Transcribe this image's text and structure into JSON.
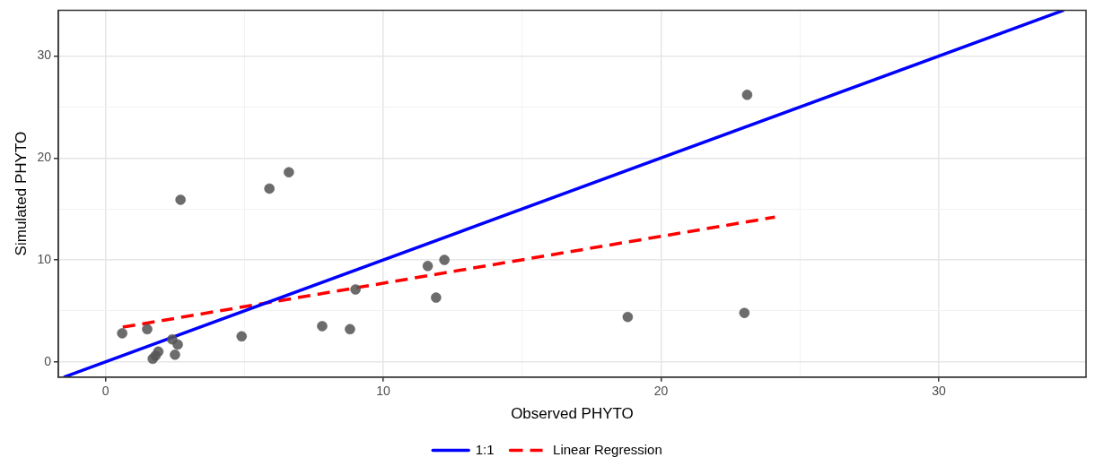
{
  "chart_data": {
    "type": "scatter",
    "xlabel": "Observed PHYTO",
    "ylabel": "Simulated PHYTO",
    "xlim": [
      -1.7,
      35.3
    ],
    "ylim": [
      -1.5,
      34.5
    ],
    "xticks": [
      0,
      {
        "value": 5,
        "label": null
      },
      10,
      {
        "value": 15,
        "label": null
      },
      20,
      {
        "value": 25,
        "label": null
      },
      30
    ],
    "yticks": [
      0,
      {
        "value": 5,
        "label": null
      },
      10,
      {
        "value": 15,
        "label": null
      },
      20,
      {
        "value": 25,
        "label": null
      },
      30
    ],
    "grid": true,
    "legend": "bottom",
    "marker": "circle",
    "series": [
      {
        "color": "#555555",
        "x": [
          0.6,
          1.5,
          2.7,
          1.7,
          1.8,
          1.9,
          2.4,
          2.5,
          2.6,
          4.9,
          5.9,
          6.6,
          7.8,
          8.8,
          9.0,
          11.6,
          12.2,
          11.9,
          18.8,
          23.0,
          23.1
        ],
        "values": [
          2.8,
          3.2,
          15.9,
          0.3,
          0.6,
          1.0,
          2.2,
          0.7,
          1.7,
          2.5,
          17.0,
          18.6,
          3.5,
          3.2,
          7.1,
          9.4,
          10.0,
          6.3,
          4.4,
          4.8,
          26.2
        ]
      },
      {
        "type": "line",
        "name": "1:1",
        "color": "#0000ff",
        "line_style": "solid",
        "marker": "none",
        "x": [
          -1.5,
          34.5
        ],
        "values": [
          -1.5,
          34.5
        ]
      },
      {
        "type": "line",
        "name": "Linear Regression",
        "color": "#ff0000",
        "line_style": "dashed",
        "marker": "none",
        "x": [
          0.62,
          24.1
        ],
        "values": [
          3.4,
          14.2
        ]
      }
    ]
  }
}
